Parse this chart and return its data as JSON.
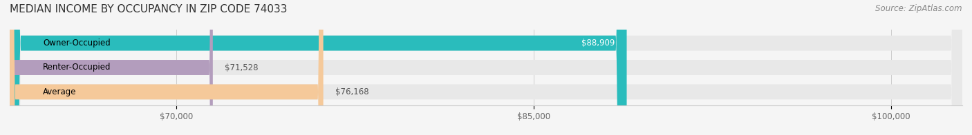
{
  "title": "MEDIAN INCOME BY OCCUPANCY IN ZIP CODE 74033",
  "source": "Source: ZipAtlas.com",
  "categories": [
    "Owner-Occupied",
    "Renter-Occupied",
    "Average"
  ],
  "values": [
    88909,
    71528,
    76168
  ],
  "bar_colors": [
    "#2abcbc",
    "#b39dbd",
    "#f5c99a"
  ],
  "bar_bg_color": "#e8e8e8",
  "value_labels": [
    "$88,909",
    "$71,528",
    "$76,168"
  ],
  "xmin": 63000,
  "xmax": 103000,
  "xticks": [
    70000,
    85000,
    100000
  ],
  "xtick_labels": [
    "$70,000",
    "$85,000",
    "$100,000"
  ],
  "title_fontsize": 11,
  "source_fontsize": 8.5,
  "label_fontsize": 8.5,
  "value_fontsize": 8.5,
  "bar_height": 0.62,
  "background_color": "#f5f5f5",
  "bar_bg_alpha": 1.0
}
